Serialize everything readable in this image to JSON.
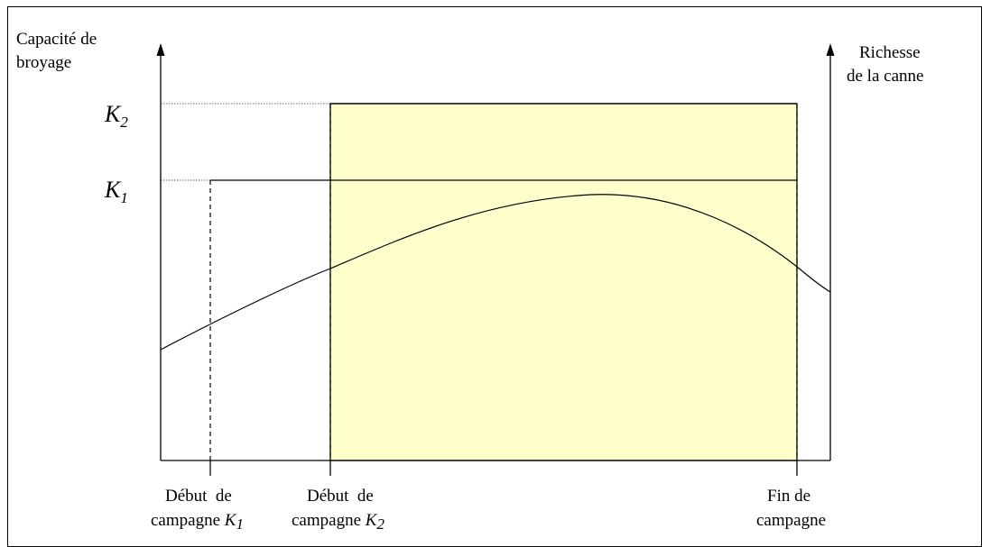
{
  "diagram": {
    "y_axis_label_left": [
      "Capacité de",
      "broyage"
    ],
    "y_axis_label_right": [
      "Richesse",
      "de la canne"
    ],
    "levels": {
      "k2": {
        "letter": "K",
        "sub": "2"
      },
      "k1": {
        "letter": "K",
        "sub": "1"
      }
    },
    "x_labels": {
      "start_k1": {
        "line1": "Début  de",
        "line2_prefix": "campagne ",
        "line2_letter": "K",
        "line2_sub": "1"
      },
      "start_k2": {
        "line1": "Début  de",
        "line2_prefix": "campagne ",
        "line2_letter": "K",
        "line2_sub": "2"
      },
      "end": {
        "line1": "Fin de",
        "line2": "campagne"
      }
    },
    "colors": {
      "highlight_fill": "#ffffcc",
      "line": "#000000"
    }
  }
}
